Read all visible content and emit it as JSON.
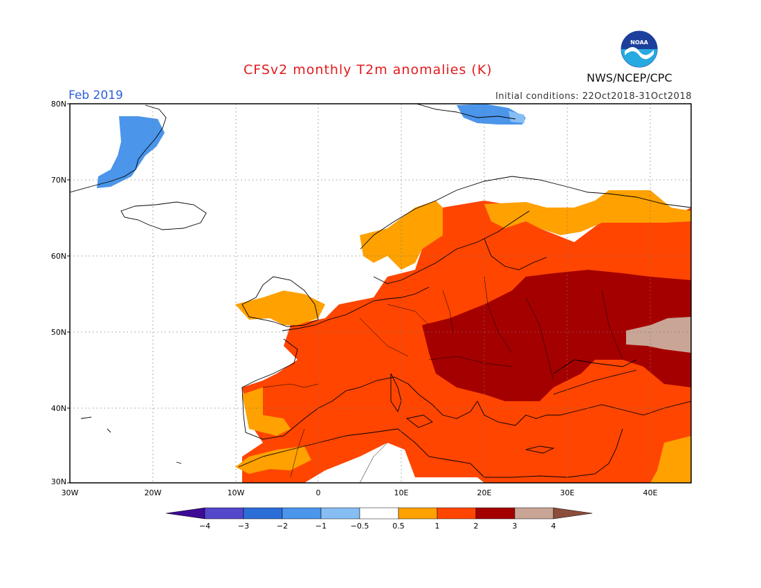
{
  "map": {
    "title": "CFSv2 monthly T2m anomalies (K)",
    "month_label": "Feb 2019",
    "initial_conditions": "Initial conditions: 22Oct2018-31Oct2018",
    "agency": "NWS/NCEP/CPC",
    "logo_text": "NOAA",
    "lat_labels": [
      "30N",
      "40N",
      "50N",
      "60N",
      "70N",
      "80N"
    ],
    "lon_labels": [
      "30W",
      "20W",
      "10W",
      "0",
      "10E",
      "20E",
      "30E",
      "40E"
    ]
  },
  "legend": {
    "boundaries": [
      "-4",
      "-3",
      "-2",
      "-1",
      "-0.5",
      "0.5",
      "1",
      "2",
      "3",
      "4"
    ],
    "colors": [
      "#3d0a96",
      "#5447cc",
      "#2c6ed8",
      "#4b95ea",
      "#86bdf3",
      "#ffffff",
      "#ffa100",
      "#ff4500",
      "#a50000",
      "#c9a596",
      "#8c4d3a"
    ]
  },
  "colors": {
    "cold_mid": "#4b95ea",
    "warm_light": "#ffa100",
    "warm_mid": "#ff4500",
    "warm_dark": "#a50000",
    "warm_extreme": "#c9a596",
    "land_outline": "#000000"
  }
}
